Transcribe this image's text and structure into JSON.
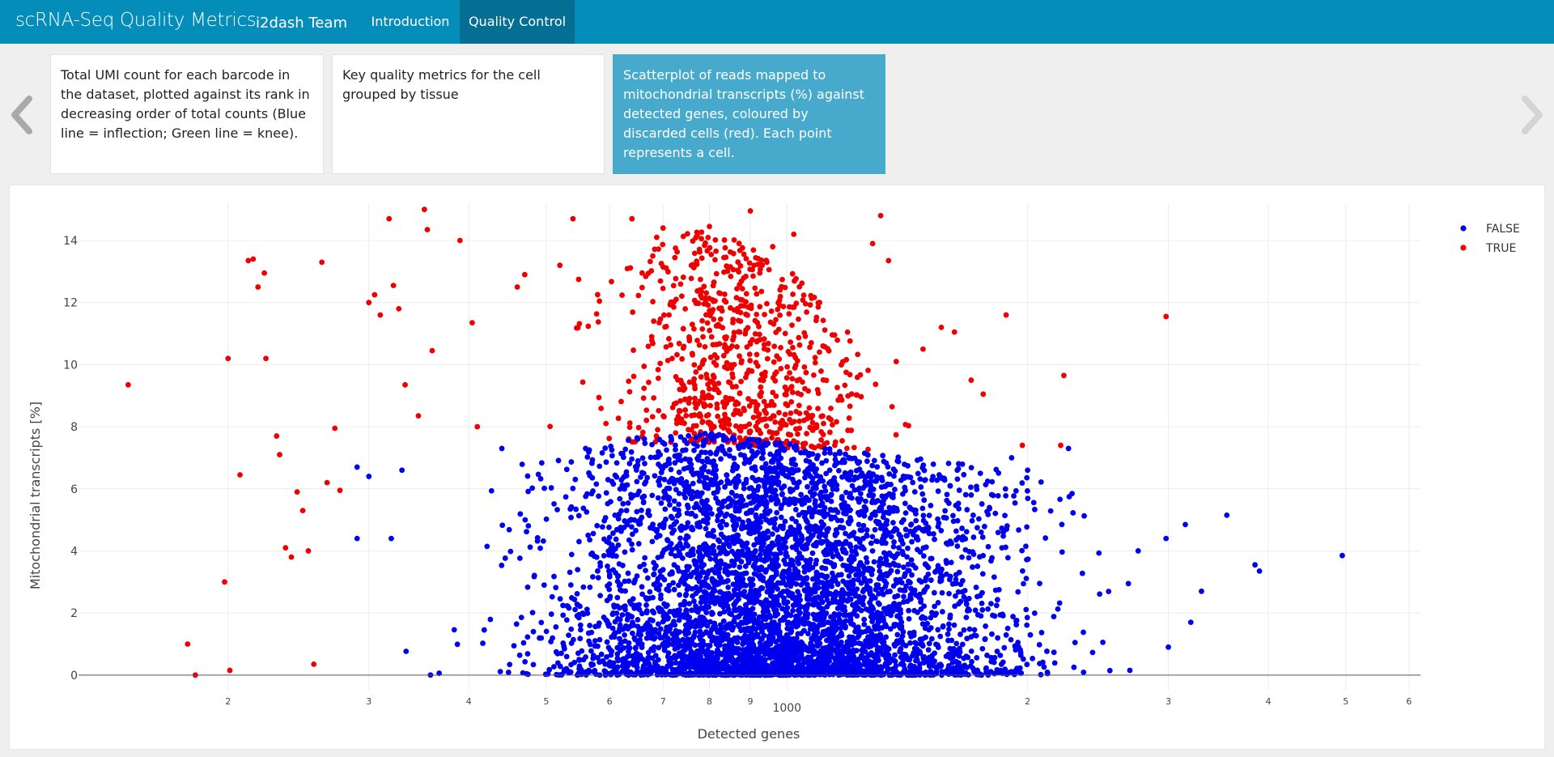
{
  "navbar": {
    "brand": "scRNA-Seq Quality Metrics",
    "team": "i2dash Team",
    "tabs": [
      {
        "label": "Introduction",
        "active": false
      },
      {
        "label": "Quality Control",
        "active": true
      }
    ]
  },
  "cards": [
    {
      "text": "Total UMI count for each barcode in the dataset, plotted against its rank in decreasing order of total counts (Blue line = inflection; Green line = knee).",
      "active": false
    },
    {
      "text": "Key quality metrics for the cell grouped by tissue",
      "active": false
    },
    {
      "text": "Scatterplot of reads mapped to mitochondrial transcripts (%) against detected genes, coloured by discarded cells (red). Each point represents a cell.",
      "active": true
    }
  ],
  "colors": {
    "navbar": "#058db9",
    "active_tab": "#056f93",
    "active_card": "#47a9cb",
    "false_series": "#0000ee",
    "true_series": "#ee0000"
  },
  "icons": {
    "prev": "chevron-left-icon",
    "next": "chevron-right-icon"
  },
  "chart_data": {
    "type": "scatter",
    "xlabel": "Detected genes",
    "ylabel": "Mitochondrial transcripts [%]",
    "x_scale": "log",
    "xlim": [
      130,
      6200
    ],
    "ylim": [
      -0.5,
      15.2
    ],
    "x_tick_values": [
      200,
      300,
      400,
      500,
      600,
      700,
      800,
      900,
      1000,
      2000,
      3000,
      4000,
      5000,
      6000
    ],
    "x_tick_labels": [
      "2",
      "3",
      "4",
      "5",
      "6",
      "7",
      "8",
      "9",
      "1000",
      "2",
      "3",
      "4",
      "5",
      "6"
    ],
    "y_ticks": [
      0,
      2,
      4,
      6,
      8,
      10,
      12,
      14
    ],
    "grid": true,
    "legend": {
      "position": "top-right",
      "entries": [
        "FALSE",
        "TRUE"
      ]
    },
    "series": [
      {
        "name": "FALSE",
        "color": "#0000ee",
        "approx_count": 5000,
        "points": [
          [
            4950,
            3.85
          ],
          [
            3850,
            3.55
          ],
          [
            3900,
            3.35
          ],
          [
            3550,
            5.15
          ],
          [
            3150,
            4.85
          ],
          [
            2980,
            4.4
          ],
          [
            2750,
            4.0
          ],
          [
            3300,
            2.7
          ],
          [
            3200,
            1.7
          ],
          [
            3000,
            0.9
          ],
          [
            2250,
            7.3
          ],
          [
            2000,
            6.6
          ],
          [
            1910,
            7.0
          ],
          [
            560,
            7.3
          ],
          [
            440,
            7.3
          ],
          [
            330,
            6.6
          ],
          [
            290,
            6.7
          ],
          [
            300,
            6.4
          ],
          [
            320,
            4.4
          ],
          [
            290,
            4.4
          ],
          [
            1600,
            6.1
          ],
          [
            1700,
            5.8
          ]
        ],
        "envelope": [
          [
            280,
            0,
            1.5
          ],
          [
            300,
            0,
            3.5
          ],
          [
            340,
            0,
            5
          ],
          [
            400,
            0,
            6.5
          ],
          [
            500,
            0,
            7
          ],
          [
            600,
            0,
            7.5
          ],
          [
            700,
            0,
            7.8
          ],
          [
            800,
            0,
            7.8
          ],
          [
            900,
            0,
            7.6
          ],
          [
            1000,
            0,
            7.5
          ],
          [
            1200,
            0,
            7.2
          ],
          [
            1500,
            0,
            7.0
          ],
          [
            2000,
            0,
            6.5
          ],
          [
            2500,
            0,
            5.5
          ],
          [
            3000,
            0,
            4.5
          ],
          [
            3500,
            0,
            3.5
          ]
        ]
      },
      {
        "name": "TRUE",
        "color": "#ee0000",
        "approx_count": 800,
        "points": [
          [
            150,
            9.35
          ],
          [
            178,
            1.0
          ],
          [
            182,
            0.0
          ],
          [
            200,
            10.2
          ],
          [
            198,
            3.0
          ],
          [
            201,
            0.15
          ],
          [
            207,
            6.45
          ],
          [
            212,
            13.35
          ],
          [
            215,
            13.4
          ],
          [
            218,
            12.5
          ],
          [
            222,
            12.95
          ],
          [
            223,
            10.2
          ],
          [
            230,
            7.7
          ],
          [
            232,
            7.1
          ],
          [
            236,
            4.1
          ],
          [
            240,
            3.8
          ],
          [
            244,
            5.9
          ],
          [
            248,
            5.3
          ],
          [
            252,
            4.0
          ],
          [
            256,
            0.35
          ],
          [
            262,
            13.3
          ],
          [
            266,
            6.2
          ],
          [
            272,
            7.95
          ],
          [
            276,
            5.95
          ],
          [
            300,
            12.0
          ],
          [
            305,
            12.25
          ],
          [
            310,
            11.6
          ],
          [
            318,
            14.7
          ],
          [
            322,
            12.55
          ],
          [
            327,
            11.8
          ],
          [
            333,
            9.35
          ],
          [
            346,
            8.35
          ],
          [
            352,
            15.0
          ],
          [
            355,
            14.35
          ],
          [
            360,
            10.45
          ],
          [
            390,
            14.0
          ],
          [
            404,
            11.35
          ],
          [
            410,
            8.0
          ],
          [
            460,
            12.5
          ],
          [
            470,
            12.9
          ],
          [
            520,
            13.2
          ],
          [
            540,
            14.7
          ],
          [
            640,
            14.7
          ],
          [
            700,
            14.4
          ],
          [
            800,
            14.45
          ],
          [
            900,
            14.95
          ],
          [
            960,
            13.8
          ],
          [
            1020,
            14.2
          ],
          [
            1280,
            13.9
          ],
          [
            1310,
            14.8
          ],
          [
            1340,
            13.35
          ],
          [
            1370,
            10.1
          ],
          [
            1480,
            10.5
          ],
          [
            1560,
            11.2
          ],
          [
            1620,
            11.05
          ],
          [
            1700,
            9.5
          ],
          [
            1760,
            9.05
          ],
          [
            1880,
            11.6
          ],
          [
            1970,
            7.4
          ],
          [
            2200,
            7.4
          ],
          [
            2220,
            9.65
          ],
          [
            2980,
            11.55
          ]
        ],
        "envelope": [
          [
            420,
            7.8,
            11
          ],
          [
            500,
            7.6,
            12.5
          ],
          [
            600,
            7.5,
            13.5
          ],
          [
            700,
            7.5,
            14.2
          ],
          [
            800,
            7.5,
            14.3
          ],
          [
            900,
            7.4,
            13.9
          ],
          [
            1000,
            7.3,
            13.2
          ],
          [
            1100,
            7.3,
            12
          ],
          [
            1200,
            7.3,
            11
          ],
          [
            1400,
            7.2,
            10
          ],
          [
            1600,
            7.0,
            9.5
          ],
          [
            1800,
            7.0,
            8.5
          ]
        ]
      }
    ]
  }
}
